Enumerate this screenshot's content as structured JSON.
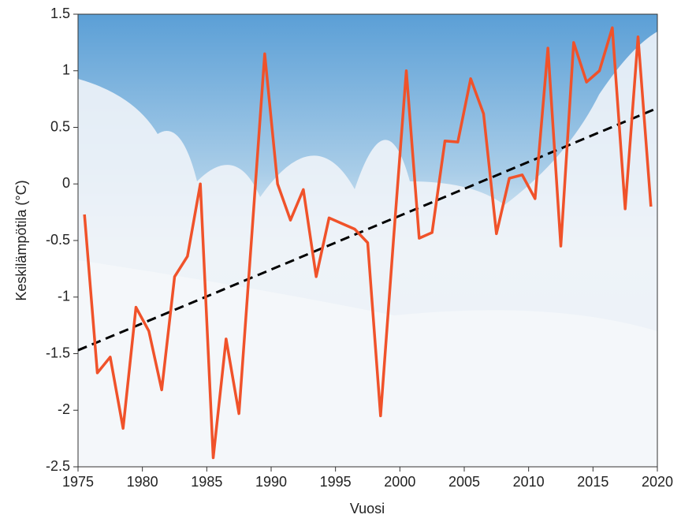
{
  "chart_data": {
    "type": "line",
    "x_label": "Vuosi",
    "y_label": "Keskilämpötila (°C)",
    "x": [
      1975.5,
      1976.5,
      1977.5,
      1978.5,
      1979.5,
      1980.5,
      1981.5,
      1982.5,
      1983.5,
      1984.5,
      1985.5,
      1986.5,
      1987.5,
      1988.5,
      1989.5,
      1990.5,
      1991.5,
      1992.5,
      1993.5,
      1994.5,
      1995.5,
      1996.5,
      1997.5,
      1998.5,
      1999.5,
      2000.5,
      2001.5,
      2002.5,
      2003.5,
      2004.5,
      2005.5,
      2006.5,
      2007.5,
      2008.5,
      2009.5,
      2010.5,
      2011.5,
      2012.5,
      2013.5,
      2014.5,
      2015.5,
      2016.5,
      2017.5,
      2018.5,
      2019.5
    ],
    "series": [
      {
        "color": "#f0522a",
        "values": [
          -0.27,
          -1.67,
          -1.53,
          -2.16,
          -1.09,
          -1.3,
          -1.82,
          -0.82,
          -0.64,
          0.0,
          -2.42,
          -1.37,
          -2.03,
          -0.45,
          1.15,
          0.0,
          -0.32,
          -0.05,
          -0.82,
          -0.3,
          -0.35,
          -0.4,
          -0.52,
          -2.05,
          -0.5,
          1.0,
          -0.48,
          -0.43,
          0.38,
          0.37,
          0.93,
          0.62,
          -0.44,
          0.05,
          0.08,
          -0.13,
          1.2,
          -0.55,
          1.25,
          0.9,
          1.0,
          1.38,
          -0.22,
          1.3,
          -0.2
        ]
      }
    ],
    "trend": {
      "x": [
        1975,
        2020
      ],
      "values": [
        -1.47,
        0.67
      ],
      "color": "#000000",
      "dashed": true
    },
    "xlim": [
      1975,
      2020
    ],
    "xticks": [
      1975,
      1980,
      1985,
      1990,
      1995,
      2000,
      2005,
      2010,
      2015,
      2020
    ],
    "ylim": [
      -2.5,
      1.5
    ],
    "yticks": [
      1.5,
      1,
      0.5,
      0,
      -0.5,
      -1,
      -1.5,
      -2,
      -2.5
    ]
  }
}
